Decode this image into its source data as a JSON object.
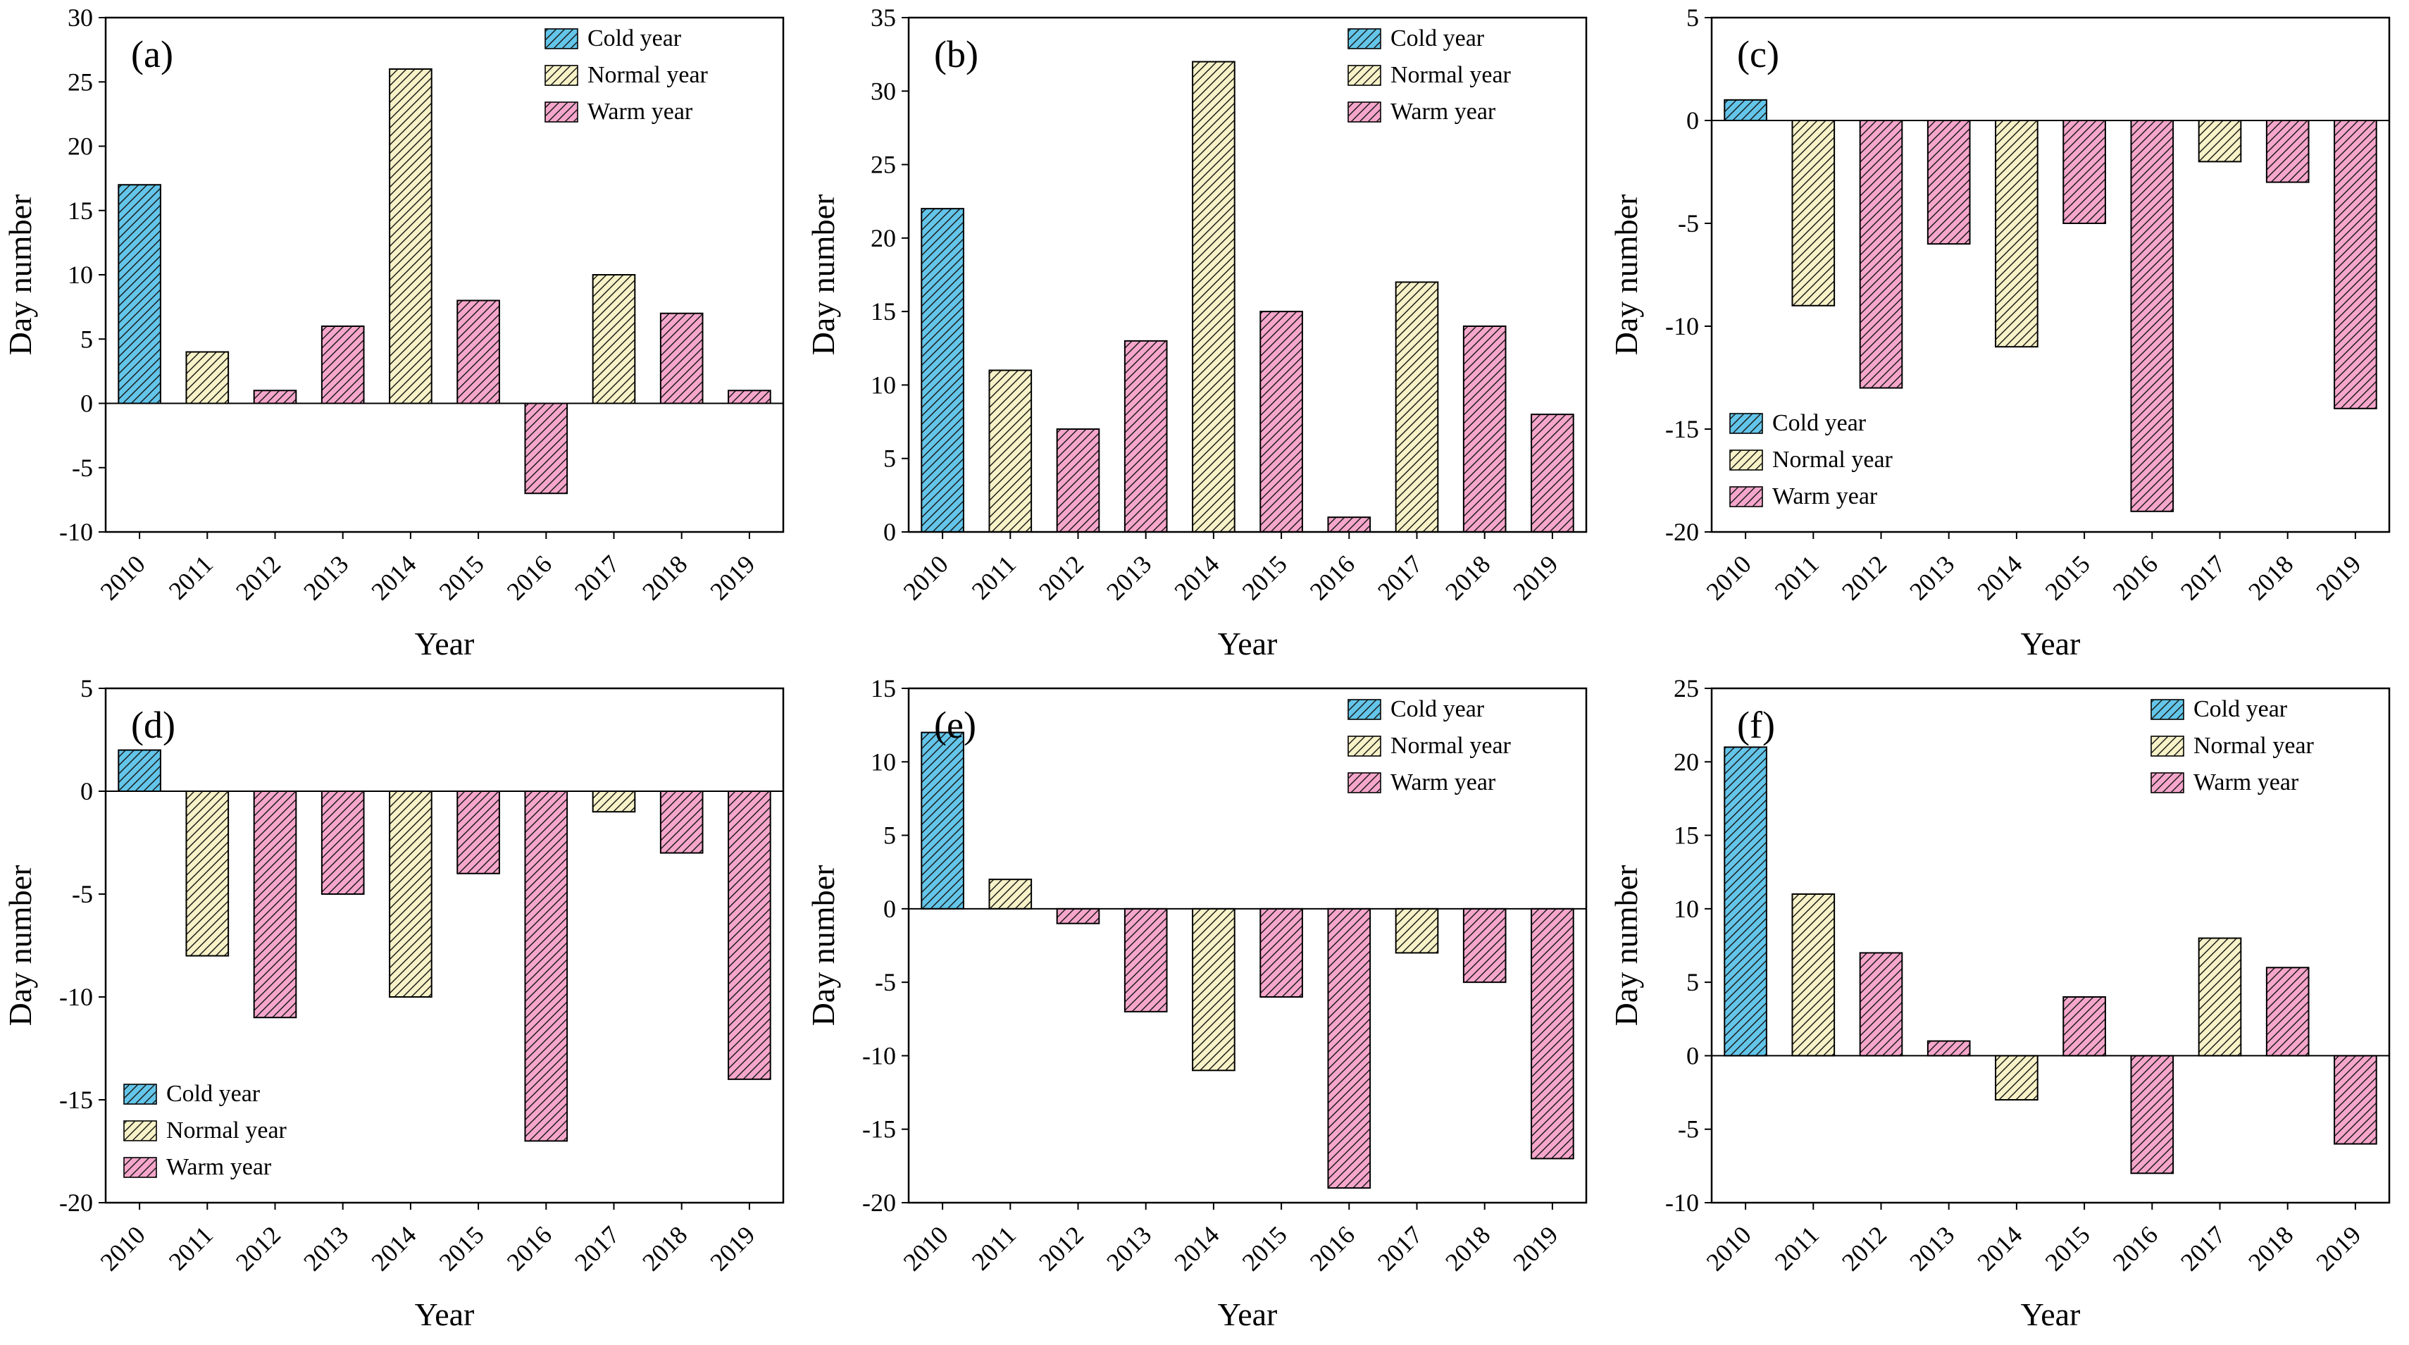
{
  "figure": {
    "background": "#ffffff",
    "axis_color": "#000000",
    "hatch_color": "#1a1a1a",
    "series": [
      {
        "key": "cold",
        "label": "Cold year",
        "color": "#63C5E9"
      },
      {
        "key": "normal",
        "label": "Normal year",
        "color": "#F7F2C7"
      },
      {
        "key": "warm",
        "label": "Warm year",
        "color": "#F6A6CB"
      }
    ]
  },
  "chart_data": [
    {
      "type": "bar",
      "panel_label": "(a)",
      "xlabel": "Year",
      "ylabel": "Day number",
      "categories": [
        "2010",
        "2011",
        "2012",
        "2013",
        "2014",
        "2015",
        "2016",
        "2017",
        "2018",
        "2019"
      ],
      "values": [
        17,
        4,
        1,
        6,
        26,
        8,
        -7,
        10,
        7,
        1
      ],
      "bar_series": [
        "cold",
        "normal",
        "warm",
        "warm",
        "normal",
        "warm",
        "warm",
        "normal",
        "warm",
        "warm"
      ],
      "ylim": [
        -10,
        30
      ],
      "yticks": [
        -10,
        -5,
        0,
        5,
        10,
        15,
        20,
        25,
        30
      ],
      "legend": {
        "position": "top-right",
        "entries": [
          "Cold year",
          "Normal year",
          "Warm year"
        ]
      }
    },
    {
      "type": "bar",
      "panel_label": "(b)",
      "xlabel": "Year",
      "ylabel": "Day number",
      "categories": [
        "2010",
        "2011",
        "2012",
        "2013",
        "2014",
        "2015",
        "2016",
        "2017",
        "2018",
        "2019"
      ],
      "values": [
        22,
        11,
        7,
        13,
        32,
        15,
        1,
        17,
        14,
        8
      ],
      "bar_series": [
        "cold",
        "normal",
        "warm",
        "warm",
        "normal",
        "warm",
        "warm",
        "normal",
        "warm",
        "warm"
      ],
      "ylim": [
        0,
        35
      ],
      "yticks": [
        0,
        5,
        10,
        15,
        20,
        25,
        30,
        35
      ],
      "legend": {
        "position": "top-right",
        "entries": [
          "Cold year",
          "Normal year",
          "Warm year"
        ]
      }
    },
    {
      "type": "bar",
      "panel_label": "(c)",
      "xlabel": "Year",
      "ylabel": "Day number",
      "categories": [
        "2010",
        "2011",
        "2012",
        "2013",
        "2014",
        "2015",
        "2016",
        "2017",
        "2018",
        "2019"
      ],
      "values": [
        1,
        -9,
        -13,
        -6,
        -11,
        -5,
        -19,
        -2,
        -3,
        -14
      ],
      "bar_series": [
        "cold",
        "normal",
        "warm",
        "warm",
        "normal",
        "warm",
        "warm",
        "normal",
        "warm",
        "warm"
      ],
      "ylim": [
        -20,
        5
      ],
      "yticks": [
        -20,
        -15,
        -10,
        -5,
        0,
        5
      ],
      "legend": {
        "position": "bottom-left",
        "entries": [
          "Cold year",
          "Normal year",
          "Warm year"
        ]
      }
    },
    {
      "type": "bar",
      "panel_label": "(d)",
      "xlabel": "Year",
      "ylabel": "Day number",
      "categories": [
        "2010",
        "2011",
        "2012",
        "2013",
        "2014",
        "2015",
        "2016",
        "2017",
        "2018",
        "2019"
      ],
      "values": [
        2,
        -8,
        -11,
        -5,
        -10,
        -4,
        -17,
        -1,
        -3,
        -14
      ],
      "bar_series": [
        "cold",
        "normal",
        "warm",
        "warm",
        "normal",
        "warm",
        "warm",
        "normal",
        "warm",
        "warm"
      ],
      "ylim": [
        -20,
        5
      ],
      "yticks": [
        -20,
        -15,
        -10,
        -5,
        0,
        5
      ],
      "legend": {
        "position": "bottom-left",
        "entries": [
          "Cold year",
          "Normal year",
          "Warm year"
        ]
      }
    },
    {
      "type": "bar",
      "panel_label": "(e)",
      "xlabel": "Year",
      "ylabel": "Day number",
      "categories": [
        "2010",
        "2011",
        "2012",
        "2013",
        "2014",
        "2015",
        "2016",
        "2017",
        "2018",
        "2019"
      ],
      "values": [
        12,
        2,
        -1,
        -7,
        -11,
        -6,
        -19,
        -3,
        -5,
        -17
      ],
      "bar_series": [
        "cold",
        "normal",
        "warm",
        "warm",
        "normal",
        "warm",
        "warm",
        "normal",
        "warm",
        "warm"
      ],
      "ylim": [
        -20,
        15
      ],
      "yticks": [
        -20,
        -15,
        -10,
        -5,
        0,
        5,
        10,
        15
      ],
      "legend": {
        "position": "top-right",
        "entries": [
          "Cold year",
          "Normal year",
          "Warm year"
        ]
      }
    },
    {
      "type": "bar",
      "panel_label": "(f)",
      "xlabel": "Year",
      "ylabel": "Day number",
      "categories": [
        "2010",
        "2011",
        "2012",
        "2013",
        "2014",
        "2015",
        "2016",
        "2017",
        "2018",
        "2019"
      ],
      "values": [
        21,
        11,
        7,
        1,
        -3,
        4,
        -8,
        8,
        6,
        -6
      ],
      "bar_series": [
        "cold",
        "normal",
        "warm",
        "warm",
        "normal",
        "warm",
        "warm",
        "normal",
        "warm",
        "warm"
      ],
      "ylim": [
        -10,
        25
      ],
      "yticks": [
        -10,
        -5,
        0,
        5,
        10,
        15,
        20,
        25
      ],
      "legend": {
        "position": "top-right",
        "entries": [
          "Cold year",
          "Normal year",
          "Warm year"
        ]
      }
    }
  ]
}
